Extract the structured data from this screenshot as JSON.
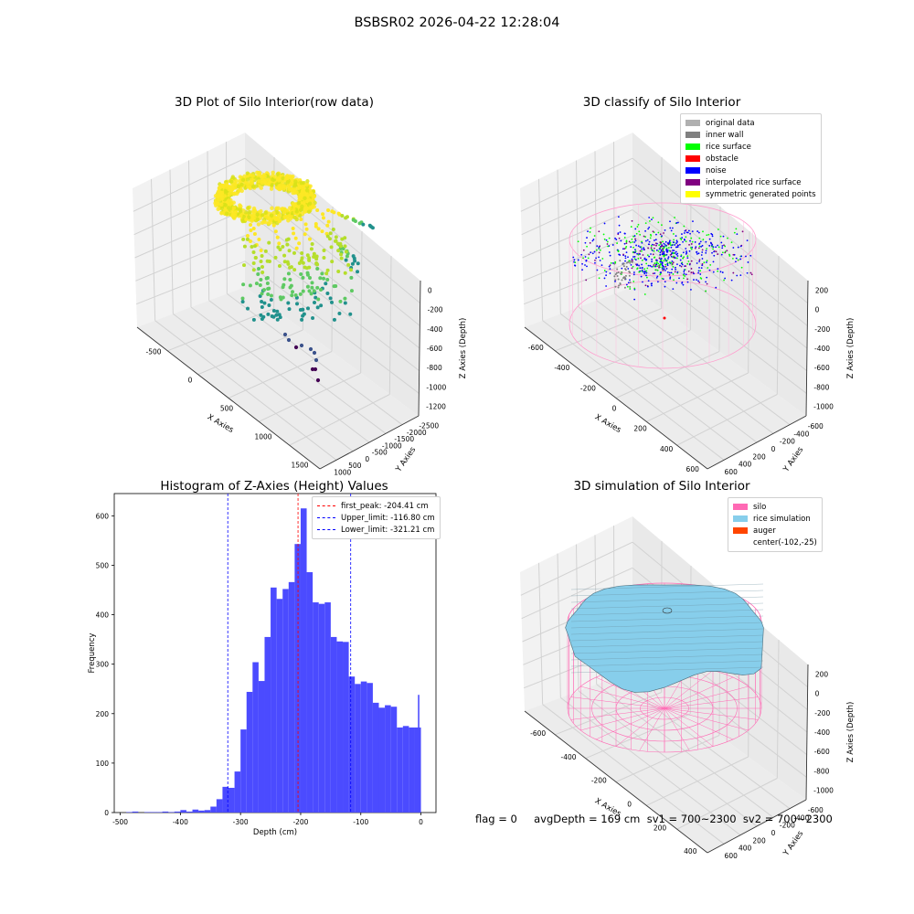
{
  "suptitle": "BSBSR02 2026-04-22 12:28:04",
  "footer": "flag = 0     avgDepth = 169 cm  sv1 = 700~2300  sv2 = 700~2300",
  "chart_data": [
    {
      "type": "scatter",
      "title": "3D Plot of Silo Interior(row data)",
      "xlabel": "X Axies",
      "ylabel": "Y Axies",
      "zlabel": "Z Axies (Depth)",
      "xticks": [
        "-500",
        "0",
        "500",
        "1000",
        "1500"
      ],
      "yticks": [
        "1000",
        "500",
        "0",
        "-500",
        "-1000",
        "-1500",
        "-2000",
        "-2500"
      ],
      "zticks": [
        "0",
        "-200",
        "-400",
        "-600",
        "-800",
        "-1000",
        "-1200"
      ],
      "colormap": "viridis"
    },
    {
      "type": "scatter",
      "title": "3D classify of Silo Interior",
      "xlabel": "X Axies",
      "ylabel": "Y Axies",
      "zlabel": "Z Axies (Depth)",
      "xticks": [
        "-600",
        "-400",
        "-200",
        "0",
        "200",
        "400",
        "600"
      ],
      "yticks": [
        "600",
        "400",
        "200",
        "0",
        "-200",
        "-400",
        "-600"
      ],
      "zticks": [
        "200",
        "0",
        "-200",
        "-400",
        "-600",
        "-800",
        "-1000"
      ],
      "legend": [
        {
          "label": "original data",
          "color": "#b0b0b0"
        },
        {
          "label": "inner wall",
          "color": "#808080"
        },
        {
          "label": "rice surface",
          "color": "#00ff00"
        },
        {
          "label": "obstacle",
          "color": "#ff0000"
        },
        {
          "label": "noise",
          "color": "#0000ff"
        },
        {
          "label": "interpolated rice surface",
          "color": "#800080"
        },
        {
          "label": "symmetric generated points",
          "color": "#ffff00"
        }
      ]
    },
    {
      "type": "bar",
      "title": "Histogram of Z-Axies (Height) Values",
      "xlabel": "Depth (cm)",
      "ylabel": "Frequency",
      "xlim": [
        -510,
        25
      ],
      "ylim": [
        0,
        645
      ],
      "xticks": [
        -500,
        -400,
        -300,
        -200,
        -100,
        0
      ],
      "yticks": [
        0,
        100,
        200,
        300,
        400,
        500,
        600
      ],
      "bin_width": 10,
      "bins_left": [
        -490,
        -480,
        -470,
        -460,
        -450,
        -440,
        -430,
        -420,
        -410,
        -400,
        -390,
        -380,
        -370,
        -360,
        -350,
        -340,
        -330,
        -320,
        -310,
        -300,
        -290,
        -280,
        -270,
        -260,
        -250,
        -240,
        -230,
        -220,
        -210,
        -200,
        -190,
        -180,
        -170,
        -160,
        -150,
        -140,
        -130,
        -120,
        -110,
        -100,
        -90,
        -80,
        -70,
        -60,
        -50,
        -40,
        -30,
        -20,
        -10
      ],
      "values": [
        1,
        2,
        0,
        1,
        1,
        1,
        2,
        1,
        2,
        5,
        2,
        6,
        4,
        5,
        12,
        27,
        52,
        50,
        83,
        168,
        244,
        304,
        266,
        355,
        455,
        432,
        452,
        466,
        543,
        615,
        486,
        425,
        422,
        425,
        355,
        346,
        345,
        275,
        260,
        265,
        262,
        222,
        212,
        217,
        214,
        172,
        175,
        172,
        172
      ],
      "last_bin": {
        "left": -5,
        "value": 238
      },
      "bar_color": "#4b4bff",
      "vlines": [
        {
          "x": -204.41,
          "color": "#ff0000",
          "label": "first_peak: -204.41 cm"
        },
        {
          "x": -116.8,
          "color": "#0000ff",
          "label": "Upper_limit: -116.80 cm"
        },
        {
          "x": -321.21,
          "color": "#0000ff",
          "label": "Lower_limit: -321.21 cm"
        }
      ],
      "legend_placement": "upper right"
    },
    {
      "type": "surface",
      "title": "3D simulation of Silo Interior",
      "xlabel": "X Axies",
      "ylabel": "Y Axies",
      "zlabel": "Z Axies (Depth)",
      "xticks": [
        "-600",
        "-400",
        "-200",
        "0",
        "200",
        "400"
      ],
      "yticks": [
        "600",
        "400",
        "200",
        "0",
        "-200",
        "-400",
        "-600"
      ],
      "zticks": [
        "200",
        "0",
        "-200",
        "-400",
        "-600",
        "-800",
        "-1000"
      ],
      "legend": [
        {
          "label": "silo",
          "color": "#ff69b4"
        },
        {
          "label": "rice simulation",
          "color": "#87ceeb"
        },
        {
          "label": "auger",
          "color": "#ff4500"
        },
        {
          "label": "center(-102,-25)",
          "color": ""
        }
      ]
    }
  ]
}
